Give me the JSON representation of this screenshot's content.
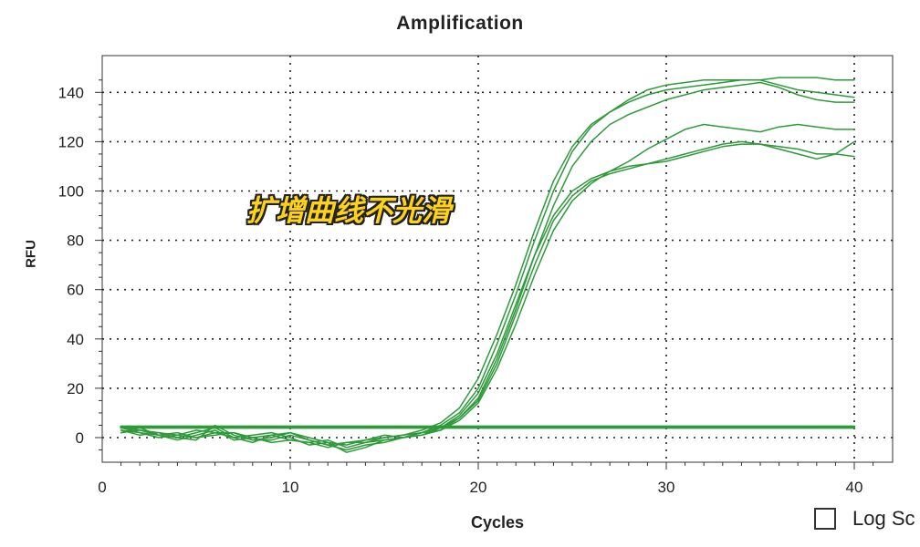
{
  "chart_data": {
    "type": "line",
    "title": "Amplification",
    "xlabel": "Cycles",
    "ylabel": "RFU",
    "xlim": [
      0,
      42
    ],
    "ylim": [
      -8,
      150
    ],
    "x_ticks": [
      0,
      10,
      20,
      30,
      40
    ],
    "y_ticks": [
      0,
      20,
      40,
      60,
      80,
      100,
      120,
      140
    ],
    "grid": true,
    "line_color": "#2e9a3a",
    "annotation": "扩增曲线不光滑",
    "series": [
      {
        "x": [
          1,
          2,
          3,
          4,
          5,
          6,
          7,
          8,
          9,
          10,
          11,
          12,
          13,
          14,
          15,
          16,
          17,
          18,
          19,
          20,
          21,
          22,
          23,
          24,
          25,
          26,
          27,
          28,
          29,
          30,
          31,
          32,
          33,
          34,
          35,
          36,
          37,
          38,
          39,
          40
        ],
        "values": [
          3,
          2,
          1,
          0,
          2,
          4,
          0,
          -2,
          1,
          2,
          -1,
          -3,
          -5,
          -3,
          -2,
          0,
          2,
          5,
          10,
          20,
          38,
          58,
          80,
          100,
          116,
          126,
          132,
          137,
          141,
          143,
          144,
          145,
          145,
          145,
          145,
          146,
          146,
          146,
          145,
          145
        ]
      },
      {
        "x": [
          1,
          2,
          3,
          4,
          5,
          6,
          7,
          8,
          9,
          10,
          11,
          12,
          13,
          14,
          15,
          16,
          17,
          18,
          19,
          20,
          21,
          22,
          23,
          24,
          25,
          26,
          27,
          28,
          29,
          30,
          31,
          32,
          33,
          34,
          35,
          36,
          37,
          38,
          39,
          40
        ],
        "values": [
          2,
          3,
          1,
          2,
          0,
          1,
          2,
          0,
          -2,
          -1,
          -2,
          -4,
          -2,
          -1,
          0,
          1,
          3,
          6,
          12,
          24,
          42,
          62,
          84,
          104,
          118,
          127,
          132,
          136,
          139,
          141,
          142,
          143,
          144,
          145,
          145,
          143,
          141,
          140,
          139,
          138
        ]
      },
      {
        "x": [
          1,
          2,
          3,
          4,
          5,
          6,
          7,
          8,
          9,
          10,
          11,
          12,
          13,
          14,
          15,
          16,
          17,
          18,
          19,
          20,
          21,
          22,
          23,
          24,
          25,
          26,
          27,
          28,
          29,
          30,
          31,
          32,
          33,
          34,
          35,
          36,
          37,
          38,
          39,
          40
        ],
        "values": [
          4,
          2,
          0,
          1,
          3,
          2,
          0,
          1,
          2,
          0,
          -3,
          -2,
          -6,
          -4,
          -1,
          0,
          1,
          4,
          8,
          16,
          32,
          52,
          74,
          94,
          110,
          120,
          127,
          131,
          134,
          137,
          139,
          141,
          142,
          143,
          144,
          142,
          139,
          137,
          136,
          136
        ]
      },
      {
        "x": [
          1,
          2,
          3,
          4,
          5,
          6,
          7,
          8,
          9,
          10,
          11,
          12,
          13,
          14,
          15,
          16,
          17,
          18,
          19,
          20,
          21,
          22,
          23,
          24,
          25,
          26,
          27,
          28,
          29,
          30,
          31,
          32,
          33,
          34,
          35,
          36,
          37,
          38,
          39,
          40
        ],
        "values": [
          3,
          1,
          2,
          0,
          -1,
          5,
          1,
          -1,
          0,
          2,
          0,
          -2,
          -3,
          -1,
          1,
          0,
          2,
          3,
          7,
          14,
          28,
          46,
          66,
          84,
          96,
          103,
          108,
          112,
          117,
          121,
          125,
          127,
          126,
          125,
          124,
          126,
          127,
          126,
          125,
          125
        ]
      },
      {
        "x": [
          1,
          2,
          3,
          4,
          5,
          6,
          7,
          8,
          9,
          10,
          11,
          12,
          13,
          14,
          15,
          16,
          17,
          18,
          19,
          20,
          21,
          22,
          23,
          24,
          25,
          26,
          27,
          28,
          29,
          30,
          31,
          32,
          33,
          34,
          35,
          36,
          37,
          38,
          39,
          40
        ],
        "values": [
          2,
          4,
          1,
          -1,
          1,
          3,
          -1,
          0,
          1,
          -1,
          -2,
          -1,
          -4,
          -2,
          0,
          1,
          2,
          4,
          9,
          18,
          34,
          54,
          74,
          90,
          100,
          105,
          108,
          110,
          111,
          113,
          115,
          117,
          119,
          120,
          119,
          118,
          117,
          115,
          115,
          114
        ]
      },
      {
        "x": [
          1,
          2,
          3,
          4,
          5,
          6,
          7,
          8,
          9,
          10,
          11,
          12,
          13,
          14,
          15,
          16,
          17,
          18,
          19,
          20,
          21,
          22,
          23,
          24,
          25,
          26,
          27,
          28,
          29,
          30,
          31,
          32,
          33,
          34,
          35,
          36,
          37,
          38,
          39,
          40
        ],
        "values": [
          4,
          3,
          2,
          1,
          0,
          2,
          2,
          -1,
          -1,
          1,
          -1,
          -3,
          -2,
          -2,
          -1,
          0,
          1,
          3,
          8,
          15,
          30,
          50,
          70,
          88,
          98,
          104,
          107,
          109,
          111,
          112,
          114,
          116,
          118,
          119,
          119,
          117,
          115,
          113,
          115,
          120
        ]
      },
      {
        "x": [
          1,
          40
        ],
        "values": [
          4,
          4
        ]
      },
      {
        "x": [
          1,
          40
        ],
        "values": [
          4.5,
          4.5
        ]
      }
    ]
  },
  "controls": {
    "log_scale_label": "Log Sc"
  }
}
